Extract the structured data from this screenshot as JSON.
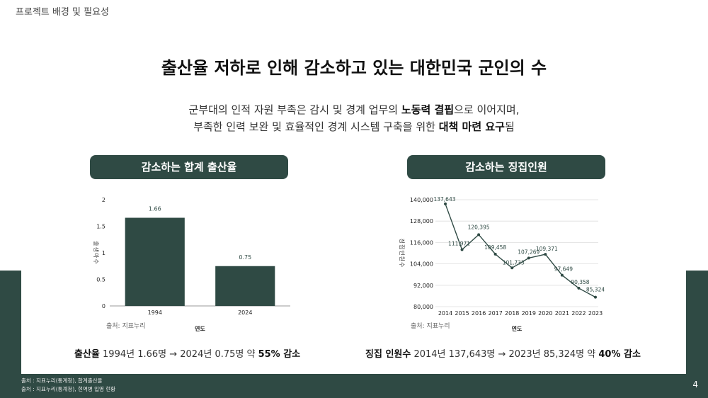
{
  "header": {
    "section": "프로젝트 배경 및 필요성",
    "page": "4"
  },
  "title": "출산율 저하로 인해 감소하고 있는 대한민국 군인의 수",
  "subtitle": {
    "line1_pre": "군부대의 인적 자원 부족은 감시 및 경계 업무의 ",
    "line1_bold": "노동력 결핍",
    "line1_post": "으로 이어지며,",
    "line2_pre": "부족한 인력 보완 및 효율적인 경계 시스템 구축을 위한 ",
    "line2_bold": "대책 마련 요구",
    "line2_post": "됨"
  },
  "left_panel": {
    "pill": "감소하는 합계 출산율",
    "source": "출처: 지표누리",
    "summary_bold1": "출산율",
    "summary_text": " 1994년 1.66명 → 2024년 0.75명 약 ",
    "summary_bold2": "55% 감소"
  },
  "right_panel": {
    "pill": "감소하는 징집인원",
    "source": "출처: 지표누리",
    "summary_bold1": "징집 인원수",
    "summary_text": " 2014년 137,643명 → 2023년 85,324명 약 ",
    "summary_bold2": "40% 감소"
  },
  "footnotes": [
    "출처 : 지표누리(통계청), 합계출산율",
    "출처 : 지표누리(통계청), 현역병 입영 현황"
  ],
  "colors": {
    "primary": "#2f4a44",
    "bar": "#2f4a44",
    "line": "#2f4a44"
  },
  "chart_data": [
    {
      "type": "bar",
      "categories": [
        "1994",
        "2024"
      ],
      "values": [
        1.66,
        0.75
      ],
      "value_labels": [
        "1.66",
        "0.75"
      ],
      "yticks": [
        "0",
        "0.5",
        "1",
        "1.5",
        "2"
      ],
      "ylim": [
        0,
        2
      ],
      "xlabel": "연도",
      "ylabel": "출생아수",
      "grid": false
    },
    {
      "type": "line",
      "x": [
        "2014",
        "2015",
        "2016",
        "2017",
        "2018",
        "2019",
        "2020",
        "2021",
        "2022",
        "2023"
      ],
      "values": [
        137643,
        111971,
        120395,
        109458,
        101733,
        107269,
        109371,
        97649,
        90358,
        85324
      ],
      "value_labels": [
        "137,643",
        "111,971",
        "120,395",
        "109,458",
        "101,733",
        "107,269",
        "109,371",
        "97,649",
        "90,358",
        "85,324"
      ],
      "yticks": [
        "80,000",
        "92,000",
        "104,000",
        "116,000",
        "128,000",
        "140,000"
      ],
      "ylim": [
        80000,
        140000
      ],
      "xlabel": "연도",
      "ylabel": "징집인원수",
      "grid": true
    }
  ]
}
